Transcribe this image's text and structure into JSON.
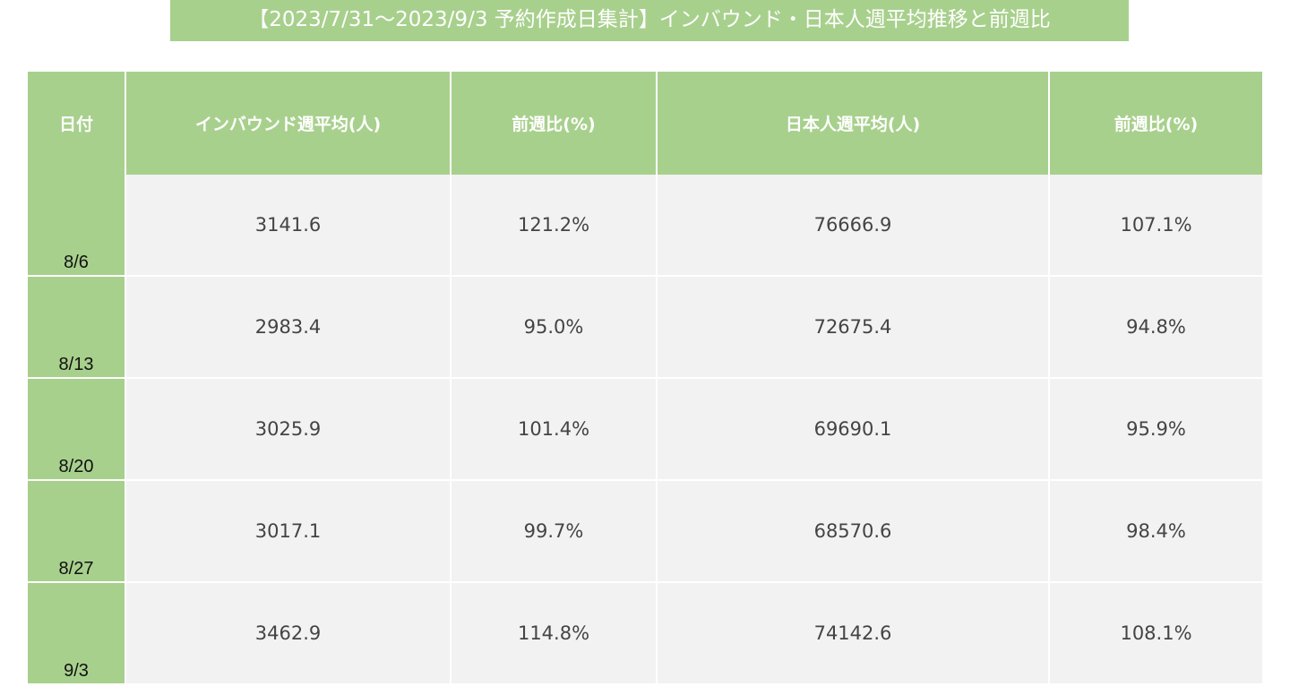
{
  "chart_data": {
    "type": "table",
    "title": "【2023/7/31〜2023/9/3 予約作成日集計】インバウンド・日本人週平均推移と前週比",
    "columns": [
      "日付",
      "インバウンド週平均(人)",
      "前週比(%)",
      "日本人週平均(人)",
      "前週比(%)"
    ],
    "rows": [
      {
        "date": "8/6",
        "inbound": "3141.6",
        "inbound_wow": "121.2%",
        "japanese": "76666.9",
        "japanese_wow": "107.1%"
      },
      {
        "date": "8/13",
        "inbound": "2983.4",
        "inbound_wow": "95.0%",
        "japanese": "72675.4",
        "japanese_wow": "94.8%"
      },
      {
        "date": "8/20",
        "inbound": "3025.9",
        "inbound_wow": "101.4%",
        "japanese": "69690.1",
        "japanese_wow": "95.9%"
      },
      {
        "date": "8/27",
        "inbound": "3017.1",
        "inbound_wow": "99.7%",
        "japanese": "68570.6",
        "japanese_wow": "98.4%"
      },
      {
        "date": "9/3",
        "inbound": "3462.9",
        "inbound_wow": "114.8%",
        "japanese": "74142.6",
        "japanese_wow": "108.1%"
      }
    ]
  },
  "colors": {
    "header_green": "#a8d08d",
    "cell_gray": "#f2f2f2"
  }
}
